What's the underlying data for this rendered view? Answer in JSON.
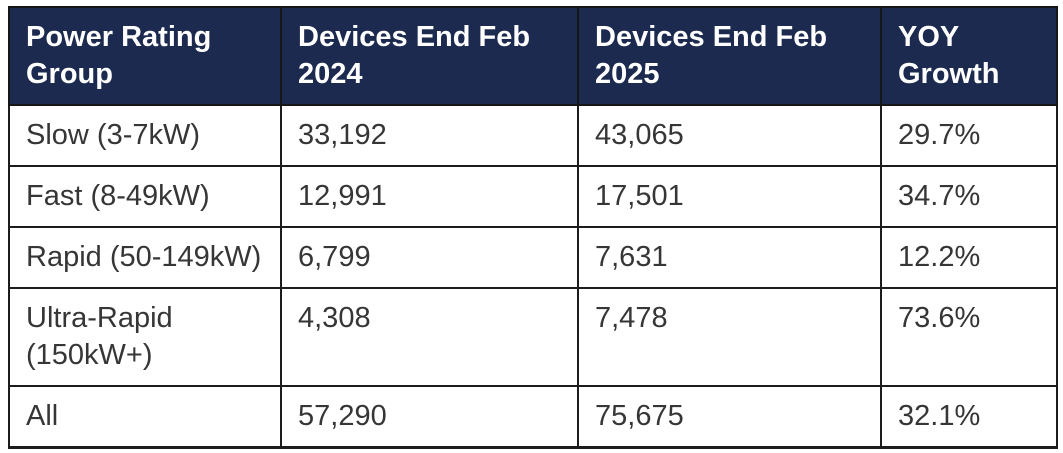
{
  "colors": {
    "header_background": "#1b2a4e",
    "header_text": "#ffffff",
    "body_text": "#363636",
    "grid_border": "#1c1c1c",
    "page_background": "#ffffff"
  },
  "table": {
    "headers": [
      "Power Rating Group",
      "Devices End Feb 2024",
      "Devices End Feb 2025",
      "YOY Growth"
    ],
    "rows": [
      [
        "Slow (3-7kW)",
        "33,192",
        "43,065",
        "29.7%"
      ],
      [
        "Fast (8-49kW)",
        "12,991",
        "17,501",
        "34.7%"
      ],
      [
        "Rapid (50-149kW)",
        "6,799",
        "7,631",
        "12.2%"
      ],
      [
        "Ultra-Rapid (150kW+)",
        "4,308",
        "7,478",
        "73.6%"
      ],
      [
        "All",
        "57,290",
        "75,675",
        "32.1%"
      ]
    ]
  },
  "chart_data": {
    "type": "table",
    "title": "",
    "columns": [
      "Power Rating Group",
      "Devices End Feb 2024",
      "Devices End Feb 2025",
      "YOY Growth"
    ],
    "categories": [
      "Slow (3-7kW)",
      "Fast (8-49kW)",
      "Rapid (50-149kW)",
      "Ultra-Rapid (150kW+)",
      "All"
    ],
    "series": [
      {
        "name": "Devices End Feb 2024",
        "values": [
          33192,
          12991,
          6799,
          4308,
          57290
        ]
      },
      {
        "name": "Devices End Feb 2025",
        "values": [
          43065,
          17501,
          7631,
          7478,
          75675
        ]
      },
      {
        "name": "YOY Growth %",
        "values": [
          29.7,
          34.7,
          12.2,
          73.6,
          32.1
        ]
      }
    ]
  }
}
